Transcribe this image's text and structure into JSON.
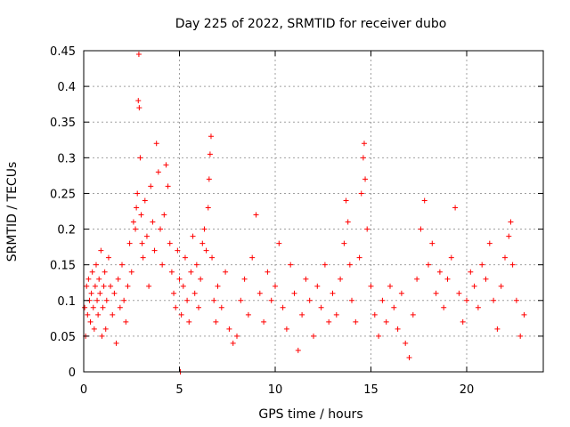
{
  "chart_data": {
    "type": "scatter",
    "title": "Day 225 of 2022, SRMTID for receiver dubo",
    "xlabel": "GPS time / hours",
    "ylabel": "SRMTID / TECUs",
    "xlim": [
      0,
      24
    ],
    "ylim": [
      0,
      0.45
    ],
    "xticks": [
      0,
      5,
      10,
      15,
      20
    ],
    "xtick_labels": [
      "0",
      "5",
      "10",
      "15",
      "20"
    ],
    "yticks": [
      0,
      0.05,
      0.1,
      0.15,
      0.2,
      0.25,
      0.3,
      0.35,
      0.4,
      0.45
    ],
    "ytick_labels": [
      "0",
      "0.05",
      "0.1",
      "0.15",
      "0.2",
      "0.25",
      "0.3",
      "0.35",
      "0.4",
      "0.45"
    ],
    "grid": true,
    "marker": "+",
    "series": [
      {
        "name": "SRMTID",
        "color": "#ff0000",
        "points": [
          [
            0.05,
            0.09
          ],
          [
            0.1,
            0.05
          ],
          [
            0.15,
            0.12
          ],
          [
            0.2,
            0.08
          ],
          [
            0.25,
            0.13
          ],
          [
            0.3,
            0.1
          ],
          [
            0.35,
            0.07
          ],
          [
            0.4,
            0.11
          ],
          [
            0.45,
            0.14
          ],
          [
            0.5,
            0.09
          ],
          [
            0.55,
            0.06
          ],
          [
            0.6,
            0.12
          ],
          [
            0.65,
            0.15
          ],
          [
            0.7,
            0.1
          ],
          [
            0.75,
            0.08
          ],
          [
            0.8,
            0.13
          ],
          [
            0.85,
            0.11
          ],
          [
            0.9,
            0.17
          ],
          [
            0.95,
            0.05
          ],
          [
            1.0,
            0.09
          ],
          [
            1.05,
            0.12
          ],
          [
            1.1,
            0.14
          ],
          [
            1.15,
            0.06
          ],
          [
            1.2,
            0.1
          ],
          [
            1.3,
            0.16
          ],
          [
            1.4,
            0.12
          ],
          [
            1.5,
            0.08
          ],
          [
            1.6,
            0.11
          ],
          [
            1.7,
            0.04
          ],
          [
            1.8,
            0.13
          ],
          [
            1.9,
            0.09
          ],
          [
            2.0,
            0.15
          ],
          [
            2.1,
            0.1
          ],
          [
            2.2,
            0.07
          ],
          [
            2.3,
            0.12
          ],
          [
            2.4,
            0.18
          ],
          [
            2.5,
            0.14
          ],
          [
            2.6,
            0.21
          ],
          [
            2.7,
            0.2
          ],
          [
            2.75,
            0.23
          ],
          [
            2.8,
            0.25
          ],
          [
            2.85,
            0.38
          ],
          [
            2.88,
            0.445
          ],
          [
            2.9,
            0.37
          ],
          [
            2.95,
            0.3
          ],
          [
            3.0,
            0.22
          ],
          [
            3.05,
            0.18
          ],
          [
            3.1,
            0.16
          ],
          [
            3.2,
            0.24
          ],
          [
            3.3,
            0.19
          ],
          [
            3.4,
            0.12
          ],
          [
            3.5,
            0.26
          ],
          [
            3.6,
            0.21
          ],
          [
            3.7,
            0.17
          ],
          [
            3.8,
            0.32
          ],
          [
            3.9,
            0.28
          ],
          [
            4.0,
            0.2
          ],
          [
            4.1,
            0.15
          ],
          [
            4.2,
            0.22
          ],
          [
            4.3,
            0.29
          ],
          [
            4.4,
            0.26
          ],
          [
            4.5,
            0.18
          ],
          [
            4.6,
            0.14
          ],
          [
            4.7,
            0.11
          ],
          [
            4.8,
            0.09
          ],
          [
            4.9,
            0.17
          ],
          [
            5.0,
            0.13
          ],
          [
            5.05,
            0.0
          ],
          [
            5.1,
            0.08
          ],
          [
            5.2,
            0.12
          ],
          [
            5.3,
            0.16
          ],
          [
            5.4,
            0.1
          ],
          [
            5.5,
            0.07
          ],
          [
            5.6,
            0.14
          ],
          [
            5.7,
            0.19
          ],
          [
            5.8,
            0.11
          ],
          [
            5.9,
            0.15
          ],
          [
            6.0,
            0.09
          ],
          [
            6.1,
            0.13
          ],
          [
            6.2,
            0.18
          ],
          [
            6.3,
            0.2
          ],
          [
            6.4,
            0.17
          ],
          [
            6.5,
            0.23
          ],
          [
            6.55,
            0.27
          ],
          [
            6.6,
            0.305
          ],
          [
            6.65,
            0.33
          ],
          [
            6.7,
            0.16
          ],
          [
            6.8,
            0.1
          ],
          [
            6.9,
            0.07
          ],
          [
            7.0,
            0.12
          ],
          [
            7.2,
            0.09
          ],
          [
            7.4,
            0.14
          ],
          [
            7.6,
            0.06
          ],
          [
            7.8,
            0.04
          ],
          [
            8.0,
            0.05
          ],
          [
            8.2,
            0.1
          ],
          [
            8.4,
            0.13
          ],
          [
            8.6,
            0.08
          ],
          [
            8.8,
            0.16
          ],
          [
            9.0,
            0.22
          ],
          [
            9.2,
            0.11
          ],
          [
            9.4,
            0.07
          ],
          [
            9.6,
            0.14
          ],
          [
            9.8,
            0.1
          ],
          [
            10.0,
            0.12
          ],
          [
            10.2,
            0.18
          ],
          [
            10.4,
            0.09
          ],
          [
            10.6,
            0.06
          ],
          [
            10.8,
            0.15
          ],
          [
            11.0,
            0.11
          ],
          [
            11.2,
            0.03
          ],
          [
            11.4,
            0.08
          ],
          [
            11.6,
            0.13
          ],
          [
            11.8,
            0.1
          ],
          [
            12.0,
            0.05
          ],
          [
            12.2,
            0.12
          ],
          [
            12.4,
            0.09
          ],
          [
            12.6,
            0.15
          ],
          [
            12.8,
            0.07
          ],
          [
            13.0,
            0.11
          ],
          [
            13.2,
            0.08
          ],
          [
            13.4,
            0.13
          ],
          [
            13.6,
            0.18
          ],
          [
            13.7,
            0.24
          ],
          [
            13.8,
            0.21
          ],
          [
            13.9,
            0.15
          ],
          [
            14.0,
            0.1
          ],
          [
            14.2,
            0.07
          ],
          [
            14.4,
            0.16
          ],
          [
            14.5,
            0.25
          ],
          [
            14.6,
            0.3
          ],
          [
            14.65,
            0.32
          ],
          [
            14.7,
            0.27
          ],
          [
            14.8,
            0.2
          ],
          [
            15.0,
            0.12
          ],
          [
            15.2,
            0.08
          ],
          [
            15.4,
            0.05
          ],
          [
            15.6,
            0.1
          ],
          [
            15.8,
            0.07
          ],
          [
            16.0,
            0.12
          ],
          [
            16.2,
            0.09
          ],
          [
            16.4,
            0.06
          ],
          [
            16.6,
            0.11
          ],
          [
            16.8,
            0.04
          ],
          [
            17.0,
            0.02
          ],
          [
            17.2,
            0.08
          ],
          [
            17.4,
            0.13
          ],
          [
            17.6,
            0.2
          ],
          [
            17.8,
            0.24
          ],
          [
            18.0,
            0.15
          ],
          [
            18.2,
            0.18
          ],
          [
            18.4,
            0.11
          ],
          [
            18.6,
            0.14
          ],
          [
            18.8,
            0.09
          ],
          [
            19.0,
            0.13
          ],
          [
            19.2,
            0.16
          ],
          [
            19.4,
            0.23
          ],
          [
            19.6,
            0.11
          ],
          [
            19.8,
            0.07
          ],
          [
            20.0,
            0.1
          ],
          [
            20.2,
            0.14
          ],
          [
            20.4,
            0.12
          ],
          [
            20.6,
            0.09
          ],
          [
            20.8,
            0.15
          ],
          [
            21.0,
            0.13
          ],
          [
            21.2,
            0.18
          ],
          [
            21.4,
            0.1
          ],
          [
            21.6,
            0.06
          ],
          [
            21.8,
            0.12
          ],
          [
            22.0,
            0.16
          ],
          [
            22.2,
            0.19
          ],
          [
            22.3,
            0.21
          ],
          [
            22.4,
            0.15
          ],
          [
            22.6,
            0.1
          ],
          [
            22.8,
            0.05
          ],
          [
            23.0,
            0.08
          ]
        ]
      }
    ]
  }
}
